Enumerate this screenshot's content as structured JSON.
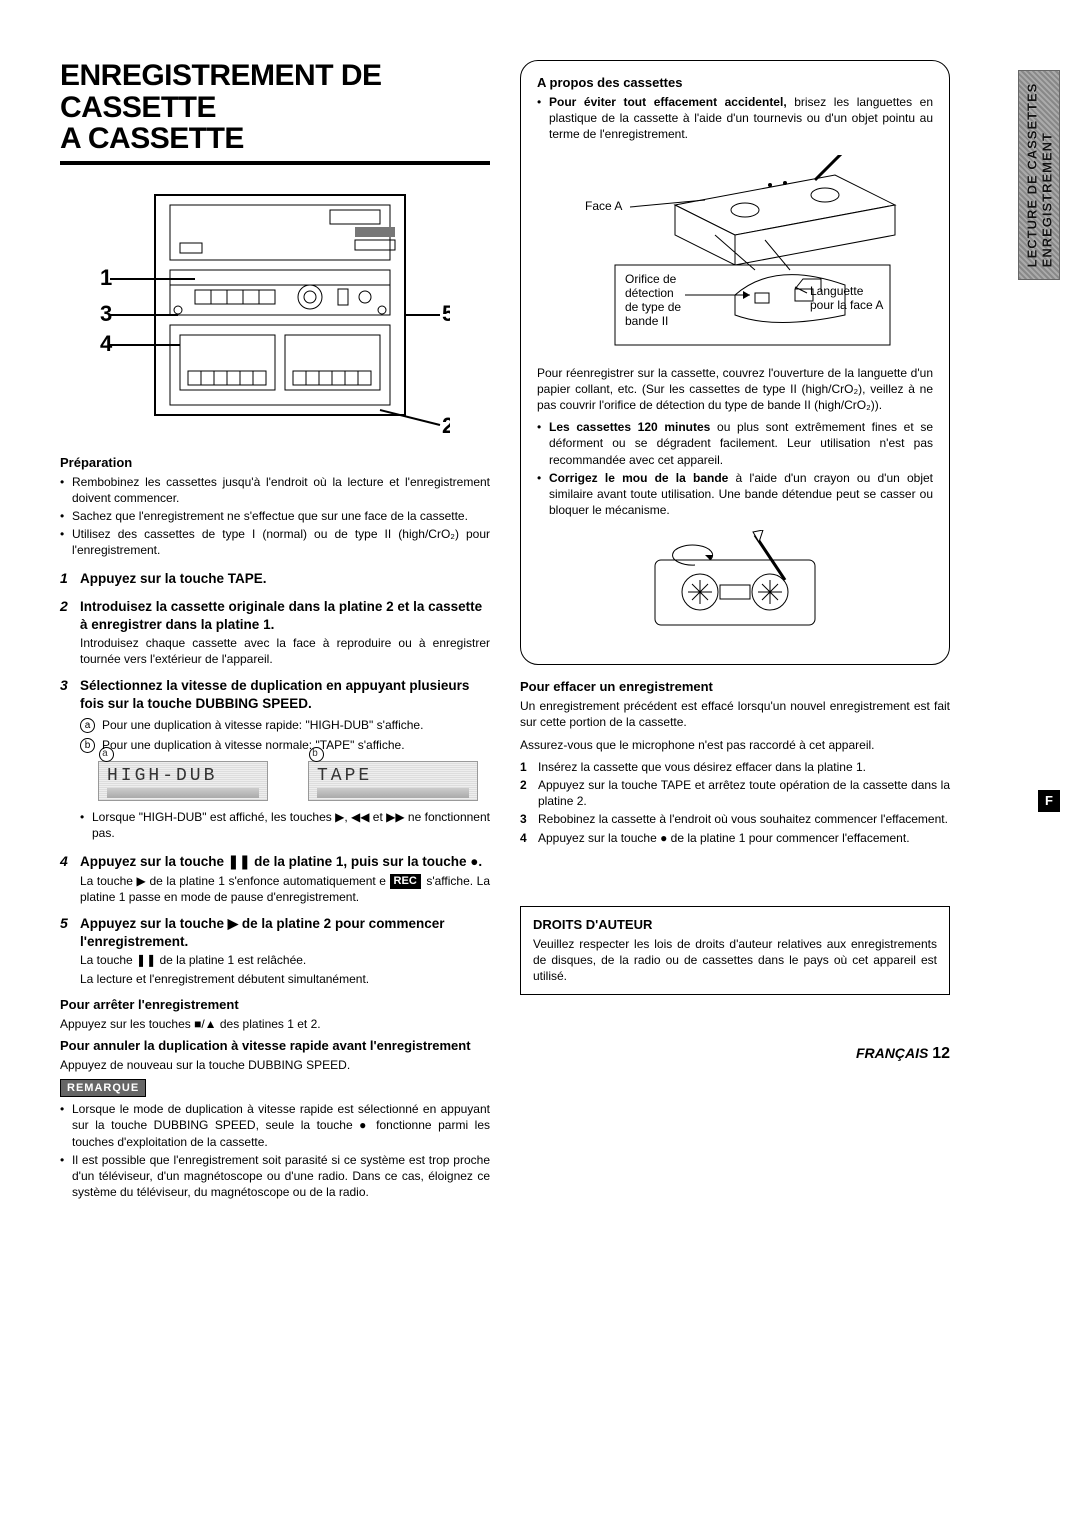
{
  "title_line1": "ENREGISTREMENT DE CASSETTE",
  "title_line2": "A CASSETTE",
  "sidebar_tab_line1": "LECTURE DE CASSETTES",
  "sidebar_tab_line2": "ENREGISTREMENT",
  "diagram_callouts": {
    "c1": "1",
    "c2": "2",
    "c3": "3",
    "c4": "4",
    "c5": "5"
  },
  "prep_head": "Préparation",
  "prep_items": [
    "Rembobinez les cassettes jusqu'à l'endroit où la lecture et l'enregistrement doivent commencer.",
    "Sachez que l'enregistrement ne s'effectue que sur une face de la cassette.",
    "Utilisez des cassettes de type I (normal) ou de type II (high/CrO₂) pour l'enregistrement."
  ],
  "steps": [
    {
      "title": "Appuyez sur la touche TAPE.",
      "body": ""
    },
    {
      "title": "Introduisez la cassette originale dans la platine 2 et la cassette à enregistrer dans la platine 1.",
      "body": "Introduisez chaque cassette avec la face à reproduire ou à enregistrer tournée vers l'extérieur de l'appareil."
    },
    {
      "title": "Sélectionnez la vitesse de duplication en appuyant plusieurs fois sur la touche DUBBING SPEED.",
      "body": "",
      "sub": [
        {
          "letter": "a",
          "text": "Pour une duplication à vitesse rapide: \"HIGH-DUB\" s'affiche."
        },
        {
          "letter": "b",
          "text": "Pour une duplication à vitesse normale: \"TAPE\" s'affiche."
        }
      ],
      "lcd": {
        "a": "HIGH-DUB",
        "b": "TAPE"
      },
      "note": "Lorsque \"HIGH-DUB\" est affiché, les touches ▶, ◀◀ et ▶▶ ne fonctionnent pas."
    },
    {
      "title": "Appuyez sur la touche ❚❚ de la platine 1, puis sur la touche ●.",
      "body_html": "La touche ▶ de la platine 1 s'enfonce automatiquement e <span class=\"rec-badge\">REC</span> s'affiche. La platine 1 passe en mode de pause d'enregistrement."
    },
    {
      "title": "Appuyez sur la touche ▶ de la platine 2 pour commencer l'enregistrement.",
      "body": "La touche ❚❚ de la platine 1 est relâchée.",
      "body2": "La lecture et l'enregistrement débutent simultanément."
    }
  ],
  "stop_head": "Pour arrêter l'enregistrement",
  "stop_body": "Appuyez sur les touches ■/▲ des platines 1 et 2.",
  "cancel_head": "Pour annuler la duplication à vitesse rapide avant l'enregistrement",
  "cancel_body": "Appuyez de nouveau sur la touche DUBBING SPEED.",
  "remark_label": "REMARQUE",
  "remark_items": [
    "Lorsque le mode de duplication à vitesse rapide est sélectionné en appuyant sur la touche DUBBING SPEED, seule la touche ● fonctionne parmi les touches d'exploitation de la cassette.",
    "Il est possible que l'enregistrement soit parasité si ce système est trop proche d'un téléviseur, d'un magnétoscope ou d'une radio. Dans ce cas, éloignez ce système du téléviseur, du magnétoscope ou de la radio."
  ],
  "about_head": "A propos des cassettes",
  "about_lead_bold": "Pour éviter tout effacement accidentel,",
  "about_lead_rest": " brisez les languettes en plastique de la cassette à l'aide d'un tournevis ou d'un objet pointu au terme de l'enregistrement.",
  "cassette_labels": {
    "faceA": "Face A",
    "orifice1": "Orifice de",
    "orifice2": "détection",
    "orifice3": "de type de",
    "orifice4": "bande II",
    "lang1": "Languette",
    "lang2": "pour la face A"
  },
  "about_para": "Pour réenregistrer sur la cassette, couvrez l'ouverture de la languette d'un papier collant, etc. (Sur les cassettes de type II (high/CrO₂), veillez à ne pas couvrir l'orifice de détection du type de bande II (high/CrO₂)).",
  "about_items": [
    {
      "bold": "Les cassettes 120 minutes",
      "rest": " ou plus sont extrêmement fines et se déforment ou se dégradent facilement. Leur utilisation n'est pas recommandée avec cet appareil."
    },
    {
      "bold": "Corrigez le mou de la bande",
      "rest": " à l'aide d'un crayon ou d'un objet similaire avant toute utilisation. Une bande détendue peut se casser ou bloquer le mécanisme."
    }
  ],
  "erase_head": "Pour effacer un enregistrement",
  "erase_para1": "Un enregistrement précédent est effacé lorsqu'un nouvel enregistrement est fait sur cette portion de la cassette.",
  "erase_para2": "Assurez-vous que le microphone n'est pas raccordé à cet appareil.",
  "erase_steps": [
    "Insérez la cassette que vous désirez effacer dans la platine 1.",
    "Appuyez sur la touche TAPE et arrêtez toute opération de la cassette dans la platine 2.",
    "Rebobinez la cassette à l'endroit où vous souhaitez commencer l'effacement.",
    "Appuyez sur la touche ● de la platine 1 pour commencer l'effacement."
  ],
  "copyright_head": "DROITS D'AUTEUR",
  "copyright_body": "Veuillez respecter les lois de droits d'auteur relatives aux enregistrements de disques, de la radio ou de cassettes dans le pays où cet appareil est utilisé.",
  "footer_lang": "FRANÇAIS",
  "footer_page": "12",
  "f_badge": "F"
}
